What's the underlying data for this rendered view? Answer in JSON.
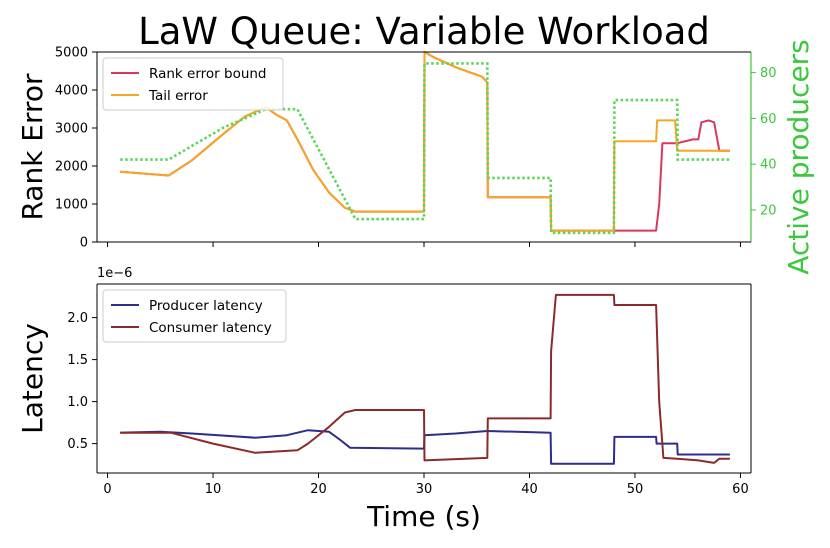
{
  "chart_data": {
    "type": "line",
    "title": "LaW Queue: Variable Workload",
    "xlabel": "Time (s)",
    "xlim": [
      -1,
      61
    ],
    "xticks": [
      0,
      10,
      20,
      30,
      40,
      50,
      60
    ],
    "panels": [
      {
        "ylabel": "Rank Error",
        "ylim": [
          0,
          5000
        ],
        "yticks": [
          0,
          1000,
          2000,
          3000,
          4000,
          5000
        ],
        "grid": false,
        "legend": "upper-left",
        "series": [
          {
            "name": "Rank error bound",
            "color": "#d9385e",
            "x": [
              1.2,
              5.8,
              8,
              11,
              13,
              15,
              16,
              17,
              18,
              19.5,
              21,
              22.5,
              23.5,
              30,
              30.05,
              31,
              33,
              35.5,
              36,
              36.05,
              42,
              42.05,
              48,
              52,
              52.3,
              52.6,
              54,
              55.5,
              56,
              56.3,
              57,
              57.5,
              58,
              59
            ],
            "y": [
              1850,
              1750,
              2150,
              2850,
              3300,
              3550,
              3350,
              3200,
              2700,
              1900,
              1300,
              900,
              800,
              800,
              5000,
              4850,
              4600,
              4350,
              4200,
              1180,
              1180,
              300,
              300,
              300,
              1000,
              2600,
              2600,
              2700,
              2700,
              3150,
              3200,
              3150,
              2400,
              2400
            ]
          },
          {
            "name": "Tail error",
            "color": "#f5a623",
            "x": [
              1.2,
              5.8,
              8,
              11,
              13,
              15,
              16,
              17,
              18,
              19.5,
              21,
              22.5,
              23.5,
              30,
              30.05,
              31,
              33,
              35.5,
              36,
              36.05,
              42,
              42.05,
              48,
              48.05,
              52,
              52.1,
              53.8,
              54,
              59
            ],
            "y": [
              1850,
              1750,
              2150,
              2850,
              3300,
              3550,
              3350,
              3200,
              2700,
              1900,
              1300,
              900,
              800,
              800,
              5000,
              4850,
              4600,
              4350,
              4200,
              1180,
              1180,
              300,
              300,
              2650,
              2650,
              3200,
              3200,
              2400,
              2400
            ]
          }
        ],
        "secondary_axis": {
          "ylabel": "Active producers",
          "color": "#3cc83c",
          "ylim": [
            6,
            89
          ],
          "yticks": [
            20,
            40,
            60,
            80
          ],
          "series": [
            {
              "name": "",
              "color": "#5ad65a",
              "style": "dotted",
              "x": [
                1.2,
                5.8,
                8,
                11,
                13,
                15,
                18,
                23.5,
                30,
                30.05,
                36,
                36.05,
                42,
                42.05,
                48,
                48.05,
                54,
                54.05,
                59
              ],
              "y": [
                42,
                42,
                48,
                56,
                60,
                64,
                64,
                16,
                16,
                84,
                84,
                34,
                34,
                10,
                10,
                68,
                68,
                42,
                42
              ]
            }
          ]
        }
      },
      {
        "ylabel": "Latency",
        "offset_text": "1e−6",
        "ylim": [
          0.15,
          2.4
        ],
        "yticks": [
          0.5,
          1.0,
          1.5,
          2.0
        ],
        "ytick_labels": [
          "0.5",
          "1.0",
          "1.5",
          "2.0"
        ],
        "grid": false,
        "legend": "upper-left",
        "series": [
          {
            "name": "Producer latency",
            "color": "#2d2d8c",
            "x": [
              1.2,
              5,
              8,
              14,
              17,
              19,
              21,
              22,
              23,
              30,
              30.05,
              33,
              36,
              42,
              42.05,
              48,
              48.05,
              52,
              52.05,
              54,
              54.05,
              59
            ],
            "y": [
              0.63,
              0.64,
              0.62,
              0.57,
              0.6,
              0.66,
              0.64,
              0.55,
              0.45,
              0.44,
              0.6,
              0.62,
              0.65,
              0.63,
              0.26,
              0.26,
              0.58,
              0.58,
              0.5,
              0.5,
              0.37,
              0.37
            ]
          },
          {
            "name": "Consumer latency",
            "color": "#8b2a2a",
            "x": [
              1.2,
              6,
              10,
              14,
              18,
              19,
              21,
              22.5,
              23.5,
              30,
              30.05,
              36,
              36.05,
              42,
              42.05,
              42.5,
              48,
              48.05,
              52,
              52.3,
              52.7,
              54,
              56,
              57.5,
              58,
              59
            ],
            "y": [
              0.63,
              0.63,
              0.5,
              0.39,
              0.42,
              0.5,
              0.7,
              0.87,
              0.9,
              0.9,
              0.3,
              0.33,
              0.8,
              0.8,
              1.6,
              2.27,
              2.27,
              2.15,
              2.15,
              1.0,
              0.33,
              0.32,
              0.3,
              0.27,
              0.32,
              0.32
            ]
          }
        ]
      }
    ]
  }
}
